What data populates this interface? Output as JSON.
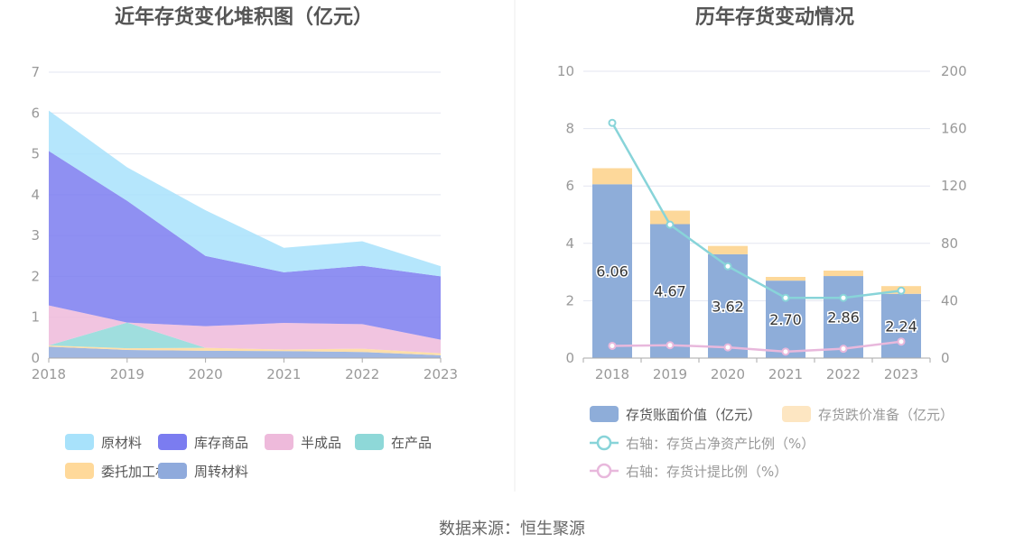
{
  "source": "数据来源：恒生聚源",
  "chart_data": [
    {
      "type": "area",
      "stacked": true,
      "title": "近年存货变化堆积图（亿元）",
      "x": [
        "2018",
        "2019",
        "2020",
        "2021",
        "2022",
        "2023"
      ],
      "ylim": [
        0,
        7
      ],
      "yticks": [
        "0",
        "1",
        "2",
        "3",
        "4",
        "5",
        "6",
        "7"
      ],
      "grid": true,
      "legend_position": "bottom",
      "series": [
        {
          "name": "周转材料",
          "color": "#8faadc",
          "values": [
            0.28,
            0.2,
            0.18,
            0.17,
            0.15,
            0.07
          ]
        },
        {
          "name": "委托加工材料",
          "color": "#ffd99a",
          "values": [
            0.03,
            0.04,
            0.07,
            0.04,
            0.08,
            0.05
          ]
        },
        {
          "name": "在产品",
          "color": "#8ed8d8",
          "values": [
            0.0,
            0.63,
            0.0,
            0.0,
            0.0,
            0.0
          ]
        },
        {
          "name": "半成品",
          "color": "#eebadb",
          "values": [
            0.98,
            0.0,
            0.53,
            0.65,
            0.6,
            0.33
          ]
        },
        {
          "name": "库存商品",
          "color": "#7b7cf0",
          "values": [
            3.78,
            2.98,
            1.72,
            1.24,
            1.43,
            1.55
          ]
        },
        {
          "name": "原材料",
          "color": "#a8e2fb",
          "values": [
            0.99,
            0.82,
            1.12,
            0.6,
            0.6,
            0.25
          ]
        }
      ],
      "legend_order": [
        "原材料",
        "库存商品",
        "半成品",
        "在产品",
        "委托加工材料",
        "周转材料"
      ]
    },
    {
      "type": "bar",
      "title": "历年存货变动情况",
      "categories": [
        "2018",
        "2019",
        "2020",
        "2021",
        "2022",
        "2023"
      ],
      "ylim": [
        0,
        10
      ],
      "yticks": [
        "0",
        "2",
        "4",
        "6",
        "8",
        "10"
      ],
      "y2lim": [
        0,
        200
      ],
      "y2ticks": [
        "0",
        "40",
        "80",
        "120",
        "160",
        "200"
      ],
      "grid": true,
      "legend_position": "bottom",
      "bar_series": [
        {
          "name": "存货账面价值（亿元）",
          "color": "#8eadd9",
          "values": [
            6.06,
            4.67,
            3.62,
            2.7,
            2.86,
            2.24
          ],
          "labels": [
            "6.06",
            "4.67",
            "3.62",
            "2.70",
            "2.86",
            "2.24"
          ]
        },
        {
          "name": "存货跌价准备（亿元）",
          "color": "#fdd89a",
          "legend_color": "#fde6c2",
          "values": [
            0.56,
            0.47,
            0.29,
            0.13,
            0.19,
            0.27
          ]
        }
      ],
      "line_series": [
        {
          "name": "右轴：存货占净资产比例（%）",
          "color": "#88d4d9",
          "axis": "right",
          "values": [
            164,
            93,
            64,
            42,
            42,
            47
          ]
        },
        {
          "name": "右轴：存货计提比例（%）",
          "color": "#e8b8dc",
          "axis": "right",
          "values": [
            8.5,
            9.0,
            7.5,
            4.5,
            6.5,
            11.5
          ]
        }
      ]
    }
  ]
}
